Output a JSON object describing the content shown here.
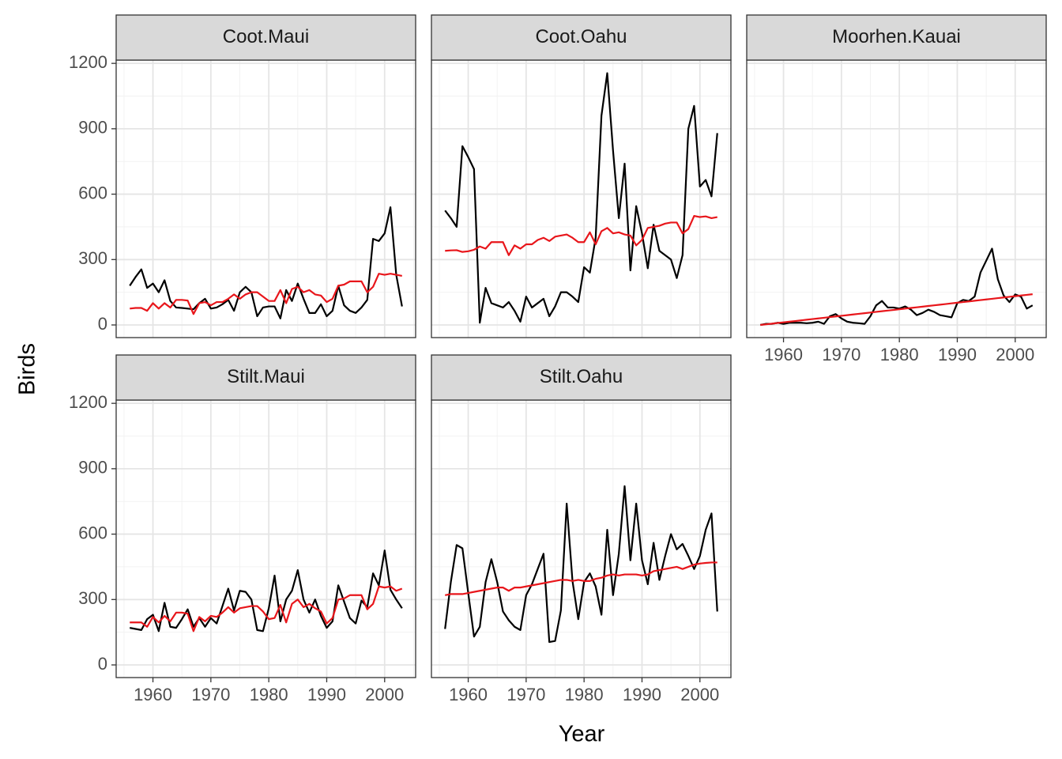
{
  "chart_data": {
    "type": "line",
    "x_label": "Year",
    "y_label": "Birds",
    "xlim": [
      1953.65,
      2005.35
    ],
    "ylim": [
      -58,
      1215
    ],
    "xticks": [
      1960,
      1970,
      1980,
      1990,
      2000
    ],
    "yticks": [
      0,
      300,
      600,
      900,
      1200
    ],
    "xminor": [
      1955,
      1965,
      1975,
      1985,
      1995,
      2005
    ],
    "yminor": [
      150,
      450,
      750,
      1050
    ],
    "grid": true,
    "columns": 3,
    "x": [
      1956,
      1957,
      1958,
      1959,
      1960,
      1961,
      1962,
      1963,
      1964,
      1965,
      1966,
      1967,
      1968,
      1969,
      1970,
      1971,
      1972,
      1973,
      1974,
      1975,
      1976,
      1977,
      1978,
      1979,
      1980,
      1981,
      1982,
      1983,
      1984,
      1985,
      1986,
      1987,
      1988,
      1989,
      1990,
      1991,
      1992,
      1993,
      1994,
      1995,
      1996,
      1997,
      1998,
      1999,
      2000,
      2001,
      2002,
      2003
    ],
    "panels": [
      {
        "title": "Coot.Maui",
        "series": [
          {
            "color": "#000000",
            "values": [
              180,
              220,
              255,
              170,
              190,
              150,
              205,
              110,
              80,
              78,
              75,
              72,
              100,
              120,
              75,
              80,
              95,
              115,
              65,
              150,
              175,
              150,
              40,
              80,
              85,
              85,
              30,
              160,
              110,
              190,
              120,
              55,
              55,
              95,
              40,
              65,
              180,
              90,
              65,
              55,
              80,
              115,
              395,
              385,
              420,
              540,
              230,
              85
            ]
          },
          {
            "color": "#e8161b",
            "values": [
              75,
              78,
              78,
              65,
              100,
              75,
              100,
              80,
              115,
              115,
              112,
              50,
              100,
              105,
              90,
              105,
              105,
              120,
              140,
              120,
              140,
              150,
              150,
              130,
              110,
              110,
              160,
              100,
              165,
              175,
              150,
              160,
              140,
              135,
              105,
              120,
              180,
              185,
              200,
              200,
              200,
              150,
              175,
              235,
              230,
              235,
              230,
              225
            ]
          }
        ]
      },
      {
        "title": "Coot.Oahu",
        "series": [
          {
            "color": "#000000",
            "values": [
              525,
              490,
              450,
              820,
              770,
              715,
              10,
              170,
              100,
              90,
              80,
              105,
              65,
              15,
              130,
              80,
              100,
              120,
              40,
              85,
              150,
              150,
              130,
              105,
              265,
              240,
              400,
              960,
              1155,
              800,
              490,
              740,
              250,
              545,
              420,
              260,
              460,
              340,
              320,
              300,
              215,
              320,
              900,
              1005,
              635,
              665,
              590,
              880
            ]
          },
          {
            "color": "#e8161b",
            "values": [
              340,
              342,
              343,
              335,
              338,
              345,
              360,
              350,
              380,
              380,
              380,
              320,
              365,
              350,
              370,
              370,
              390,
              400,
              385,
              405,
              410,
              415,
              400,
              380,
              380,
              425,
              370,
              430,
              445,
              420,
              425,
              415,
              410,
              365,
              390,
              445,
              450,
              455,
              465,
              470,
              470,
              420,
              440,
              500,
              495,
              498,
              490,
              495
            ]
          }
        ]
      },
      {
        "title": "Moorhen.Kauai",
        "series": [
          {
            "color": "#000000",
            "values": [
              0,
              5,
              5,
              10,
              5,
              10,
              10,
              10,
              8,
              10,
              15,
              5,
              40,
              50,
              30,
              15,
              10,
              8,
              5,
              40,
              90,
              110,
              80,
              80,
              75,
              85,
              70,
              45,
              55,
              70,
              60,
              45,
              40,
              35,
              100,
              115,
              110,
              130,
              240,
              295,
              350,
              210,
              135,
              105,
              140,
              130,
              75,
              90
            ]
          },
          {
            "color": "#e8161b",
            "values": [
              0,
              3,
              6,
              9,
              12,
              15,
              18,
              21,
              24,
              27,
              30,
              33,
              36,
              39,
              42,
              45,
              48,
              51,
              54,
              57,
              60,
              63,
              66,
              69,
              72,
              75,
              78,
              81,
              84,
              87,
              90,
              93,
              96,
              99,
              102,
              105,
              108,
              111,
              114,
              117,
              120,
              123,
              126,
              129,
              132,
              135,
              138,
              141
            ]
          }
        ]
      },
      {
        "title": "Stilt.Maui",
        "series": [
          {
            "color": "#000000",
            "values": [
              170,
              165,
              160,
              210,
              230,
              155,
              285,
              175,
              170,
              210,
              255,
              175,
              215,
              175,
              215,
              190,
              270,
              350,
              250,
              340,
              335,
              300,
              160,
              155,
              260,
              410,
              200,
              300,
              340,
              435,
              300,
              240,
              300,
              225,
              170,
              200,
              365,
              290,
              215,
              190,
              295,
              265,
              420,
              365,
              525,
              345,
              300,
              260
            ]
          },
          {
            "color": "#e8161b",
            "values": [
              195,
              195,
              195,
              175,
              220,
              195,
              225,
              200,
              240,
              240,
              235,
              155,
              220,
              200,
              225,
              220,
              240,
              265,
              240,
              260,
              265,
              270,
              270,
              245,
              210,
              215,
              275,
              195,
              280,
              300,
              265,
              280,
              260,
              245,
              190,
              215,
              300,
              305,
              320,
              320,
              320,
              255,
              280,
              360,
              355,
              360,
              340,
              350
            ]
          }
        ]
      },
      {
        "title": "Stilt.Oahu",
        "series": [
          {
            "color": "#000000",
            "values": [
              165,
              380,
              550,
              535,
              330,
              130,
              175,
              380,
              485,
              380,
              245,
              205,
              175,
              160,
              320,
              370,
              440,
              510,
              105,
              110,
              250,
              740,
              385,
              210,
              380,
              420,
              360,
              230,
              620,
              320,
              510,
              820,
              480,
              740,
              480,
              370,
              560,
              390,
              500,
              600,
              530,
              555,
              500,
              440,
              500,
              620,
              695,
              245
            ]
          },
          {
            "color": "#e8161b",
            "values": [
              320,
              325,
              325,
              325,
              330,
              335,
              340,
              345,
              350,
              355,
              355,
              340,
              355,
              355,
              360,
              365,
              370,
              375,
              380,
              385,
              390,
              390,
              385,
              390,
              385,
              385,
              395,
              400,
              410,
              415,
              410,
              415,
              415,
              415,
              410,
              415,
              430,
              435,
              440,
              445,
              450,
              440,
              450,
              460,
              465,
              468,
              470,
              470
            ]
          }
        ]
      }
    ]
  }
}
